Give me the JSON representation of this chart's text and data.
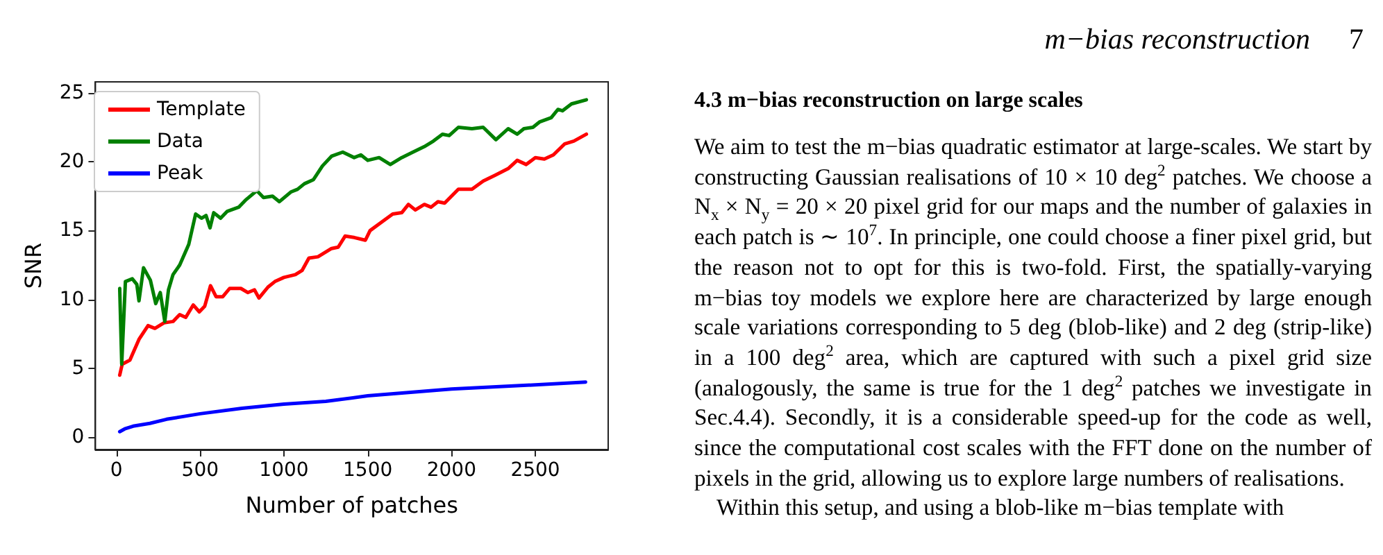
{
  "chart_data": {
    "type": "line",
    "xlabel": "Number of patches",
    "ylabel": "SNR",
    "xlim": [
      -125,
      2935
    ],
    "xticks": [
      0,
      500,
      1000,
      1500,
      2000,
      2500
    ],
    "ylim": [
      -0.9,
      25.8
    ],
    "yticks": [
      0,
      5,
      10,
      15,
      20,
      25
    ],
    "grid": false,
    "legend": "top left",
    "marker": "none",
    "line_style": "solid",
    "series": [
      {
        "name": "Template",
        "color": "#ff0000",
        "x": [
          20,
          35,
          81,
          135,
          189,
          230,
          284,
          338,
          378,
          414,
          459,
          495,
          527,
          562,
          595,
          635,
          676,
          743,
          784,
          824,
          851,
          905,
          946,
          1000,
          1068,
          1108,
          1149,
          1203,
          1284,
          1324,
          1365,
          1419,
          1486,
          1514,
          1581,
          1649,
          1703,
          1743,
          1784,
          1838,
          1878,
          1919,
          1959,
          2041,
          2122,
          2189,
          2257,
          2338,
          2392,
          2446,
          2500,
          2554,
          2608,
          2676,
          2730,
          2805
        ],
        "values": [
          4.5,
          5.3,
          5.6,
          7.1,
          8.1,
          7.9,
          8.3,
          8.4,
          8.9,
          8.7,
          9.6,
          9.1,
          9.5,
          11.0,
          10.2,
          10.2,
          10.8,
          10.8,
          10.5,
          10.7,
          10.1,
          10.9,
          11.3,
          11.6,
          11.8,
          12.1,
          13.0,
          13.1,
          13.7,
          13.8,
          14.6,
          14.5,
          14.3,
          15.0,
          15.6,
          16.2,
          16.3,
          16.9,
          16.5,
          16.9,
          16.7,
          17.1,
          17.0,
          18.0,
          18.0,
          18.6,
          19.0,
          19.5,
          20.1,
          19.8,
          20.3,
          20.2,
          20.5,
          21.3,
          21.5,
          22.0
        ]
      },
      {
        "name": "Data",
        "color": "#008000",
        "x": [
          20,
          32,
          54,
          95,
          122,
          135,
          162,
          203,
          235,
          262,
          289,
          311,
          338,
          378,
          432,
          473,
          508,
          535,
          559,
          581,
          622,
          662,
          730,
          770,
          838,
          878,
          932,
          973,
          1041,
          1081,
          1122,
          1176,
          1230,
          1284,
          1351,
          1419,
          1459,
          1500,
          1568,
          1635,
          1703,
          1770,
          1838,
          1892,
          1946,
          1986,
          2041,
          2122,
          2189,
          2265,
          2338,
          2392,
          2432,
          2486,
          2527,
          2595,
          2635,
          2662,
          2716,
          2805
        ],
        "values": [
          10.8,
          5.3,
          11.3,
          11.5,
          11.1,
          9.9,
          12.3,
          11.4,
          9.7,
          10.5,
          8.4,
          10.7,
          11.8,
          12.5,
          14.0,
          16.2,
          15.9,
          16.1,
          15.2,
          16.3,
          15.9,
          16.4,
          16.7,
          17.2,
          17.9,
          17.4,
          17.5,
          17.1,
          17.8,
          18.0,
          18.4,
          18.7,
          19.7,
          20.4,
          20.7,
          20.3,
          20.5,
          20.1,
          20.3,
          19.8,
          20.3,
          20.7,
          21.1,
          21.5,
          22.0,
          21.9,
          22.5,
          22.4,
          22.5,
          21.6,
          22.4,
          22.0,
          22.4,
          22.5,
          22.9,
          23.2,
          23.8,
          23.7,
          24.2,
          24.5
        ]
      },
      {
        "name": "Peak",
        "color": "#0000ff",
        "x": [
          20,
          50,
          100,
          200,
          300,
          500,
          750,
          1000,
          1250,
          1500,
          2000,
          2500,
          2800
        ],
        "values": [
          0.4,
          0.6,
          0.8,
          1.0,
          1.3,
          1.7,
          2.1,
          2.4,
          2.6,
          3.0,
          3.5,
          3.8,
          4.0
        ]
      }
    ],
    "annotations": [
      "m−bias reconstruction",
      "7",
      "4.3  m−bias reconstruction on large scales",
      "We aim to test the m−bias quadratic estimator at large-scales. We start by constructing Gaussian realisations of 10 × 10 deg$^{2}$ patches. We choose a N$_{x}$ × N$_{y}$ = 20 × 20 pixel grid for our maps and the number of galaxies in each patch is ∼ 10$^{7}$. In principle, one could choose a finer pixel grid, but the reason not to opt for this is two-fold. First, the spatially-varying m−bias toy models we explore here are characterized by large enough scale variations corresponding to 5 deg (blob-like) and 2 deg (strip-like) in a 100 deg$^{2}$ area, which are captured with such a pixel grid size (analogously, the same is true for the 1 deg$^{2}$ patches we investigate in Sec.4.4). Secondly, it is a considerable speed-up for the code as well, since the computational cost scales with the FFT done on the number of pixels in the grid, allowing us to explore large numbers of realisations.",
      "Within this setup, and using a blob-like m−bias template with"
    ]
  }
}
